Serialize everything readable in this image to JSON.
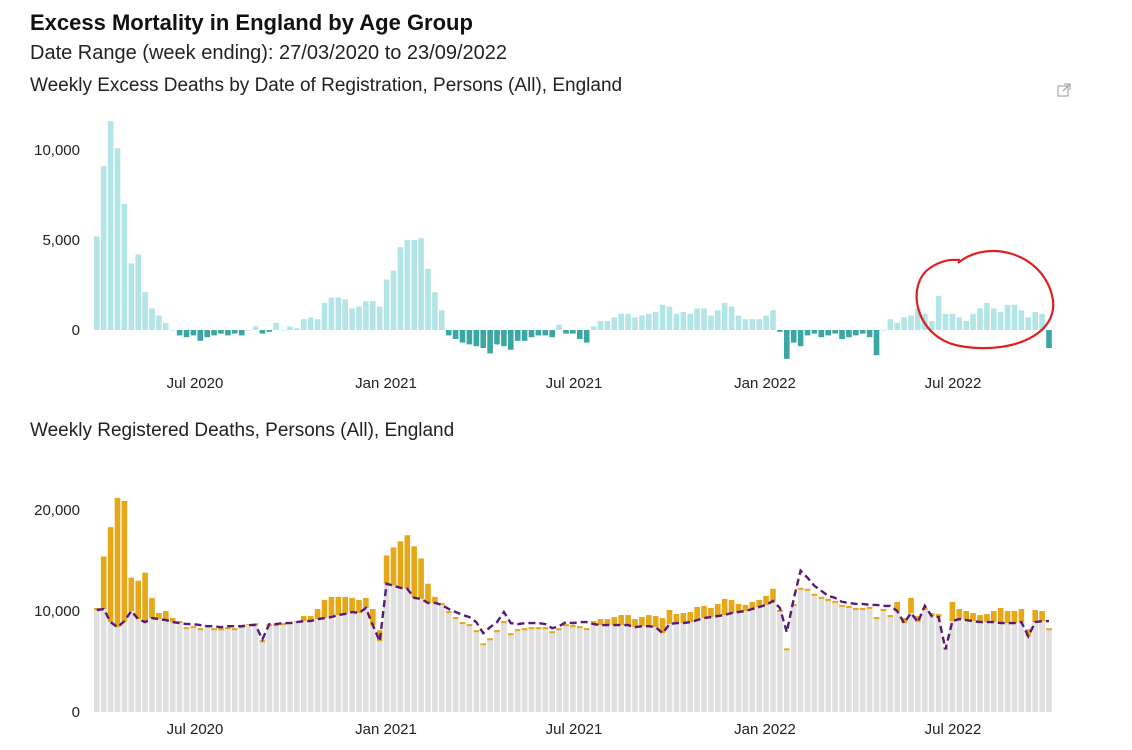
{
  "header": {
    "title": "Excess Mortality in England by Age Group",
    "subtitle": "Date Range (week ending): 27/03/2020 to 23/09/2022"
  },
  "chart_data": [
    {
      "type": "bar",
      "title": "Weekly Excess Deaths by Date of Registration, Persons (All), England",
      "x_tick_labels": [
        "Jul 2020",
        "Jan 2021",
        "Jul 2021",
        "Jan 2022",
        "Jul 2022"
      ],
      "y_tick_labels": [
        "10,000",
        "5,000",
        "0"
      ],
      "ylim": [
        -2000,
        12000
      ],
      "grid": false,
      "colors": {
        "positive": "#b3e5e7",
        "negative": "#3aa7a3"
      },
      "values": [
        5200,
        9100,
        11600,
        10100,
        7000,
        3700,
        4200,
        2100,
        1200,
        800,
        400,
        0,
        -300,
        -400,
        -300,
        -600,
        -400,
        -300,
        -200,
        -300,
        -200,
        -300,
        0,
        200,
        -200,
        -100,
        400,
        0,
        200,
        100,
        600,
        700,
        600,
        1500,
        1800,
        1800,
        1700,
        1200,
        1300,
        1600,
        1600,
        1300,
        2800,
        3300,
        4600,
        5000,
        5000,
        5100,
        3400,
        2100,
        1100,
        -300,
        -500,
        -700,
        -800,
        -900,
        -1000,
        -1300,
        -800,
        -900,
        -1100,
        -600,
        -600,
        -400,
        -300,
        -300,
        -400,
        300,
        -200,
        -200,
        -500,
        -700,
        200,
        500,
        500,
        700,
        900,
        900,
        700,
        800,
        900,
        1000,
        1400,
        1300,
        900,
        1000,
        900,
        1200,
        1200,
        800,
        1100,
        1500,
        1300,
        800,
        600,
        600,
        600,
        800,
        1100,
        -100,
        -1600,
        -700,
        -900,
        -300,
        -200,
        -400,
        -300,
        -200,
        -500,
        -400,
        -300,
        -200,
        -400,
        -1400,
        0,
        600,
        400,
        700,
        800,
        1200,
        900,
        500,
        1900,
        900,
        900,
        700,
        500,
        900,
        1200,
        1500,
        1200,
        1000,
        1400,
        1400,
        1100,
        700,
        1000,
        900,
        -1000
      ]
    },
    {
      "type": "bar",
      "title": "Weekly Registered Deaths, Persons (All), England",
      "x_tick_labels": [
        "Jul 2020",
        "Jan 2021",
        "Jul 2021",
        "Jan 2022",
        "Jul 2022"
      ],
      "y_tick_labels": [
        "20,000",
        "10,000",
        "0"
      ],
      "ylim": [
        0,
        22000
      ],
      "grid": false,
      "colors": {
        "baseline": "#e0e0e0",
        "excess": "#e6a817",
        "expected_line": "#5a1a78"
      },
      "expected": [
        10100,
        10200,
        8900,
        8400,
        9000,
        10000,
        9200,
        8900,
        9300,
        9200,
        9100,
        8900,
        8800,
        8700,
        8700,
        8600,
        8500,
        8500,
        8400,
        8500,
        8500,
        8500,
        8600,
        8600,
        7200,
        8700,
        8700,
        8800,
        8800,
        8900,
        9000,
        9000,
        9200,
        9300,
        9400,
        9600,
        9700,
        9900,
        9800,
        10300,
        8600,
        7000,
        12700,
        12500,
        12300,
        12200,
        11300,
        11200,
        10800,
        10800,
        10600,
        10200,
        9900,
        9600,
        9400,
        8900,
        7800,
        8400,
        8900,
        9900,
        8800,
        8700,
        8800,
        8800,
        8800,
        8700,
        8300,
        8500,
        8900,
        8800,
        8900,
        8900,
        8700,
        8600,
        8600,
        8600,
        8600,
        8600,
        8400,
        8500,
        8500,
        8400,
        7800,
        8700,
        8800,
        8800,
        8900,
        9100,
        9300,
        9400,
        9500,
        9600,
        9800,
        9900,
        10000,
        10200,
        10400,
        10600,
        11000,
        10300,
        7900,
        11200,
        14000,
        13300,
        12500,
        12000,
        11500,
        11300,
        10900,
        10800,
        10700,
        10700,
        10600,
        10600,
        10500,
        10500,
        10000,
        8800,
        9800,
        8900,
        10500,
        9500,
        9400,
        6200,
        9000,
        9200,
        9100,
        9000,
        8900,
        8900,
        8900,
        8800,
        8800,
        8800,
        8900,
        7500,
        8900,
        9000,
        9000
      ],
      "registered": [
        10300,
        15400,
        18300,
        21200,
        20900,
        13300,
        13000,
        13800,
        11300,
        9800,
        10000,
        9300,
        9000,
        8400,
        8500,
        8300,
        8600,
        8300,
        8300,
        8400,
        8300,
        8500,
        8700,
        8800,
        7100,
        8700,
        8700,
        8800,
        8900,
        9000,
        9500,
        9500,
        10200,
        11100,
        11400,
        11400,
        11400,
        11300,
        11100,
        11300,
        10200,
        8100,
        15500,
        16300,
        16900,
        17500,
        16400,
        15200,
        12700,
        11400,
        10800,
        10000,
        9400,
        8900,
        8700,
        8100,
        6800,
        7300,
        8100,
        9000,
        7800,
        8200,
        8300,
        8400,
        8400,
        8400,
        8000,
        8300,
        8700,
        8600,
        8500,
        8300,
        9000,
        9200,
        9200,
        9400,
        9600,
        9600,
        9200,
        9400,
        9600,
        9500,
        9300,
        10100,
        9700,
        9800,
        9900,
        10400,
        10500,
        10300,
        10700,
        11200,
        11100,
        10700,
        10600,
        10900,
        11100,
        11500,
        12200,
        10100,
        6300,
        10700,
        12300,
        12200,
        11700,
        11400,
        11200,
        11000,
        10600,
        10500,
        10300,
        10300,
        10400,
        9400,
        10200,
        9600,
        10900,
        9300,
        11300,
        9500,
        10300,
        9800,
        9700,
        6400,
        10900,
        10200,
        10000,
        9800,
        9600,
        9700,
        10000,
        10300,
        10000,
        10000,
        10200,
        8200,
        10100,
        10000,
        8300
      ]
    }
  ]
}
